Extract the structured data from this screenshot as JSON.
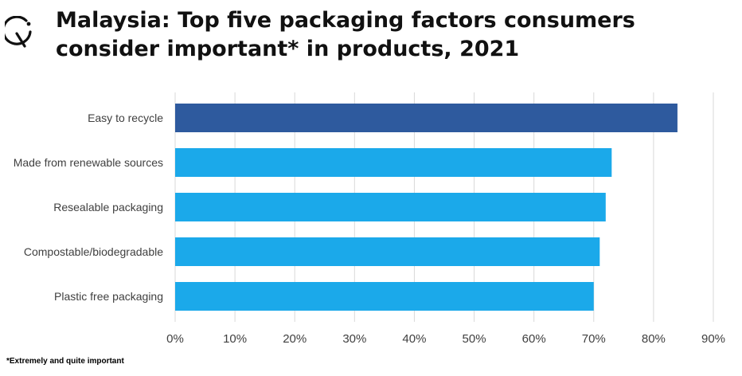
{
  "title": "Malaysia: Top five packaging factors consumers consider important* in products, 2021",
  "footnote": "*Extremely and quite important",
  "logo_icon": "brand-logo-icon",
  "colors": {
    "highlight": "#2E5A9E",
    "bar": "#1BA9EA",
    "grid": "#D9D9D9",
    "text": "#404040"
  },
  "chart_data": {
    "type": "bar",
    "orientation": "horizontal",
    "title": "",
    "xlabel": "",
    "ylabel": "",
    "categories": [
      "Easy to recycle",
      "Made from renewable sources",
      "Resealable packaging",
      "Compostable/biodegradable",
      "Plastic free packaging"
    ],
    "values": [
      84,
      73,
      72,
      71,
      70
    ],
    "unit": "%",
    "xlim": [
      0,
      90
    ],
    "xticks": [
      "0%",
      "10%",
      "20%",
      "30%",
      "40%",
      "50%",
      "60%",
      "70%",
      "80%",
      "90%"
    ],
    "grid": "vertical",
    "legend": "none"
  }
}
